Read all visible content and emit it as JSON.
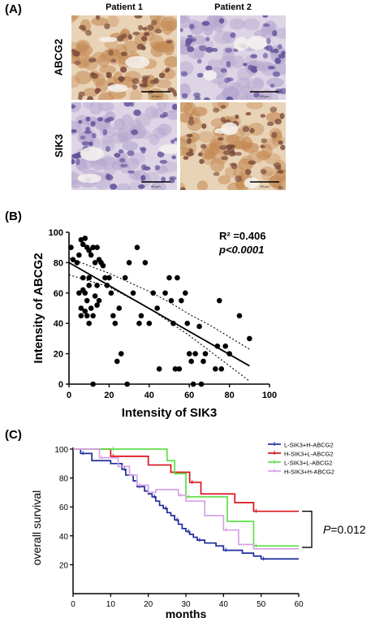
{
  "panel_a": {
    "letter": "(A)",
    "columns": [
      "Patient 1",
      "Patient 2"
    ],
    "rows": [
      "ABCG2",
      "SIK3"
    ],
    "scale_bar_label": "50 μm",
    "stain": {
      "ABCG2": {
        "Patient 1": "strong",
        "Patient 2": "weak"
      },
      "SIK3": {
        "Patient 1": "weak",
        "Patient 2": "strong"
      }
    }
  },
  "panel_b": {
    "letter": "(B)",
    "stat_r2": "R² =0.406",
    "stat_p": "p<0.0001"
  },
  "panel_c": {
    "letter": "(C)",
    "p_label": "P=0.012"
  },
  "chart_data": [
    {
      "type": "scatter",
      "xlabel": "Intensity of SIK3",
      "ylabel": "Intensity of ABCG2",
      "xlim": [
        0,
        100
      ],
      "ylim": [
        0,
        100
      ],
      "xticks": [
        0,
        20,
        40,
        60,
        80,
        100
      ],
      "yticks": [
        0,
        20,
        40,
        60,
        80,
        100
      ],
      "color": "#000000",
      "points": [
        [
          1,
          90
        ],
        [
          2,
          82
        ],
        [
          4,
          80
        ],
        [
          5,
          85
        ],
        [
          6,
          95
        ],
        [
          7,
          92
        ],
        [
          8,
          96
        ],
        [
          9,
          90
        ],
        [
          10,
          88
        ],
        [
          11,
          85
        ],
        [
          12,
          90
        ],
        [
          13,
          80
        ],
        [
          14,
          90
        ],
        [
          15,
          82
        ],
        [
          16,
          80
        ],
        [
          17,
          78
        ],
        [
          5,
          60
        ],
        [
          6,
          50
        ],
        [
          6,
          45
        ],
        [
          7,
          62
        ],
        [
          7,
          70
        ],
        [
          8,
          48
        ],
        [
          8,
          60
        ],
        [
          9,
          55
        ],
        [
          9,
          45
        ],
        [
          10,
          70
        ],
        [
          10,
          65
        ],
        [
          11,
          50
        ],
        [
          12,
          45
        ],
        [
          13,
          58
        ],
        [
          14,
          65
        ],
        [
          14,
          52
        ],
        [
          10,
          40
        ],
        [
          12,
          0
        ],
        [
          15,
          55
        ],
        [
          18,
          70
        ],
        [
          19,
          65
        ],
        [
          20,
          70
        ],
        [
          21,
          60
        ],
        [
          22,
          45
        ],
        [
          23,
          40
        ],
        [
          24,
          15
        ],
        [
          25,
          50
        ],
        [
          26,
          20
        ],
        [
          28,
          70
        ],
        [
          29,
          0
        ],
        [
          30,
          80
        ],
        [
          32,
          60
        ],
        [
          34,
          90
        ],
        [
          35,
          40
        ],
        [
          36,
          45
        ],
        [
          38,
          80
        ],
        [
          40,
          40
        ],
        [
          42,
          60
        ],
        [
          44,
          50
        ],
        [
          45,
          10
        ],
        [
          48,
          60
        ],
        [
          50,
          70
        ],
        [
          51,
          55
        ],
        [
          52,
          40
        ],
        [
          53,
          10
        ],
        [
          54,
          70
        ],
        [
          55,
          10
        ],
        [
          56,
          55
        ],
        [
          58,
          60
        ],
        [
          59,
          40
        ],
        [
          60,
          20
        ],
        [
          61,
          15
        ],
        [
          62,
          0
        ],
        [
          63,
          20
        ],
        [
          65,
          38
        ],
        [
          66,
          0
        ],
        [
          67,
          15
        ],
        [
          68,
          20
        ],
        [
          73,
          10
        ],
        [
          74,
          25
        ],
        [
          75,
          55
        ],
        [
          76,
          10
        ],
        [
          78,
          25
        ],
        [
          80,
          20
        ],
        [
          85,
          45
        ],
        [
          90,
          30
        ]
      ],
      "regression": {
        "x": [
          0,
          90
        ],
        "y": [
          80,
          12
        ]
      },
      "ci_upper": {
        "x": [
          0,
          10,
          20,
          30,
          40,
          50,
          60,
          70,
          80,
          90
        ],
        "y": [
          83,
          78,
          73,
          67,
          61,
          54,
          46,
          39,
          31,
          23
        ]
      },
      "ci_lower": {
        "x": [
          0,
          10,
          20,
          30,
          40,
          50,
          60,
          70,
          80,
          90
        ],
        "y": [
          72,
          68,
          64,
          57,
          50,
          41,
          32,
          22,
          12,
          2
        ]
      }
    },
    {
      "type": "line",
      "subtype": "kaplan-meier",
      "xlabel": "months",
      "ylabel": "overall survival",
      "xlim": [
        0,
        60
      ],
      "ylim": [
        0,
        100
      ],
      "xticks": [
        0,
        10,
        20,
        30,
        40,
        50,
        60
      ],
      "yticks": [
        20,
        40,
        60,
        80,
        100
      ],
      "series": [
        {
          "name": "L-SIK3+H-ABCG2",
          "color": "#1f2d9c",
          "x": [
            0,
            2,
            5,
            10,
            13,
            14,
            16,
            17,
            19,
            20,
            21,
            22,
            23,
            24,
            25,
            26,
            27,
            28,
            29,
            30,
            31,
            32,
            33,
            35,
            38,
            40,
            45,
            48,
            50,
            60
          ],
          "y": [
            100,
            97,
            92,
            90,
            86,
            82,
            78,
            74,
            71,
            69,
            67,
            64,
            61,
            59,
            56,
            54,
            51,
            48,
            45,
            43,
            41,
            39,
            37,
            35,
            33,
            30,
            28,
            26,
            24,
            24
          ]
        },
        {
          "name": "H-SIK3+L-ABCG2",
          "color": "#d9121c",
          "x": [
            0,
            10,
            20,
            26,
            31,
            34,
            43,
            48,
            60
          ],
          "y": [
            100,
            95,
            89,
            84,
            77,
            69,
            63,
            57,
            57
          ]
        },
        {
          "name": "L-SIK3+L-ABCG2",
          "color": "#5fe04a",
          "x": [
            0,
            10,
            25,
            27,
            30,
            38,
            41,
            48,
            60
          ],
          "y": [
            100,
            100,
            92,
            83,
            67,
            67,
            50,
            33,
            33
          ]
        },
        {
          "name": "H-SIK3+H-ABCG2",
          "color": "#d7a1e8",
          "x": [
            0,
            7,
            12,
            15,
            17,
            20,
            22,
            28,
            30,
            35,
            40,
            44,
            48,
            60
          ],
          "y": [
            100,
            94,
            88,
            82,
            75,
            70,
            72,
            68,
            64,
            54,
            44,
            34,
            31,
            31
          ]
        }
      ]
    }
  ]
}
